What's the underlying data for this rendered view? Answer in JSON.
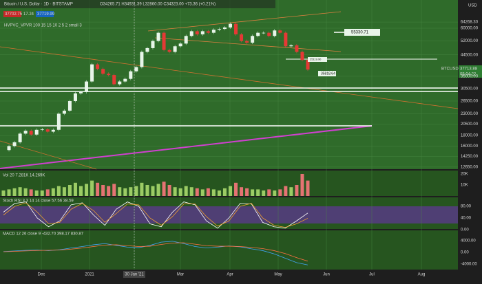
{
  "header": {
    "symbol": "Bitcoin / U.S. Dollar · 1D · BITSTAMP",
    "ohlc": "O34265.71 H34931.39 L32860.00 C34323.00 +73.36 (+0.21%)",
    "sell": "37702.75",
    "spread": "17.24",
    "buy": "37719.99",
    "indicator": "HVPVC_VPVR 100 15 15 10 2 5 2 small 3"
  },
  "price_axis": {
    "currency": "USD",
    "ticks": [
      "64268.30",
      "60000.00",
      "52000.00",
      "44500.00",
      "35000.00",
      "30500.00",
      "26500.00",
      "23000.00",
      "20500.00",
      "18000.00",
      "16000.00",
      "14250.00",
      "12650.00"
    ],
    "last_symbol": "BTCUSD",
    "last_price": "37713.88",
    "countdown": "05:04:22"
  },
  "annotations": {
    "target": "55330.71",
    "upper_box": "25119.90",
    "lower_box": "35818.64"
  },
  "candles": [
    15300,
    16000,
    16700,
    18400,
    19000,
    18200,
    19200,
    19300,
    18800,
    19200,
    23000,
    23800,
    26500,
    28900,
    29300,
    33000,
    40000,
    38000,
    36000,
    35500,
    32000,
    33000,
    34000,
    37000,
    38800,
    46000,
    48000,
    52000,
    57000,
    47000,
    46000,
    49000,
    50500,
    55000,
    58000,
    56000,
    58000,
    57000,
    59000,
    59500,
    60500,
    63000,
    56000,
    52000,
    51000,
    55000,
    57000,
    57000,
    55000,
    58500,
    57000,
    49000,
    49500,
    46000,
    42000,
    37714
  ],
  "volume": {
    "label": "Vol 20  7.281K  14.269K",
    "ticks": [
      "20K",
      "10K"
    ],
    "values": [
      5,
      6,
      7,
      8,
      7,
      6,
      5,
      5,
      6,
      7,
      9,
      8,
      10,
      12,
      9,
      11,
      14,
      12,
      10,
      9,
      11,
      8,
      7,
      8,
      9,
      12,
      10,
      9,
      11,
      13,
      10,
      8,
      7,
      9,
      8,
      7,
      6,
      7,
      6,
      5,
      7,
      9,
      12,
      8,
      7,
      6,
      6,
      5,
      6,
      5,
      6,
      9,
      8,
      10,
      20,
      14
    ]
  },
  "stoch": {
    "label": "Stoch RSI 3 3 14 14 close  57.56  38.59",
    "ticks": [
      "80.00",
      "40.00",
      "0.00"
    ],
    "k": [
      60,
      90,
      95,
      40,
      10,
      30,
      85,
      92,
      50,
      15,
      70,
      95,
      80,
      20,
      10,
      60,
      95,
      85,
      30,
      5,
      40,
      90,
      88,
      25,
      10,
      5,
      30,
      57
    ],
    "d": [
      50,
      80,
      92,
      60,
      20,
      25,
      70,
      90,
      65,
      25,
      55,
      88,
      85,
      40,
      15,
      45,
      88,
      88,
      45,
      12,
      30,
      80,
      90,
      40,
      15,
      8,
      20,
      39
    ]
  },
  "macd": {
    "label": "MACD 12 26 close 9  -432.70  398.17  830.87",
    "ticks": [
      "4000.00",
      "0.00",
      "-4000.00"
    ],
    "macd": [
      300,
      500,
      700,
      800,
      600,
      900,
      1500,
      2000,
      2600,
      3000,
      2400,
      1800,
      1600,
      2400,
      3500,
      3800,
      3000,
      2000,
      1500,
      1800,
      2200,
      1900,
      1200,
      600,
      -500,
      -2000,
      -3500,
      -4300
    ],
    "signal": [
      200,
      350,
      500,
      650,
      700,
      800,
      1100,
      1500,
      2000,
      2500,
      2600,
      2300,
      2000,
      2100,
      2700,
      3200,
      3300,
      2800,
      2300,
      2100,
      2100,
      2000,
      1700,
      1300,
      600,
      -400,
      -1800,
      -3000
    ]
  },
  "time_axis": {
    "labels": [
      "Dec",
      "2021",
      "30 Jan '21",
      "Mar",
      "Apr",
      "May",
      "Jun",
      "Jul",
      "Aug"
    ]
  }
}
